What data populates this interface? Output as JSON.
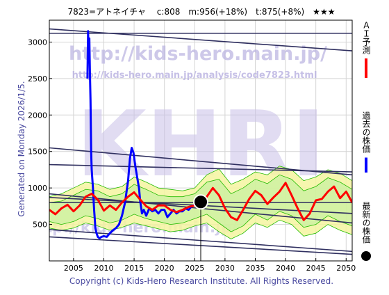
{
  "chart_data": {
    "type": "line",
    "title": "7823=アトネイチャ　 c:808　m:956(+18%)　t:875(+8%)　★★★",
    "xlim": [
      2001,
      2051
    ],
    "ylim": [
      0,
      3300
    ],
    "x_ticks": [
      2005,
      2010,
      2015,
      2020,
      2025,
      2030,
      2035,
      2040,
      2045,
      2050
    ],
    "y_ticks": [
      500,
      1000,
      1500,
      2000,
      2500,
      3000
    ],
    "grid": true,
    "left_label": "Generated on Monday 2026/1/5.",
    "footer": "Copyright (c) Kids-Hero Research Institute. All Rights Reserved.",
    "watermark": {
      "big": "KHRI",
      "url1": "http://kids-hero.main.jp/",
      "url2": "http://kids-hero.main.jp/analysis/code7823.html",
      "url3": "http://kids-hero.main.jp/"
    },
    "legend": [
      {
        "label": "ＡＩ予測",
        "color": "#ff0000",
        "marker": "line"
      },
      {
        "label": "過去の株価",
        "color": "#0000ff",
        "marker": "line"
      },
      {
        "label": "最新の株価",
        "color": "#000000",
        "marker": "dot"
      }
    ],
    "colors": {
      "ai": "#ff0000",
      "past": "#0000ff",
      "latest": "#000000",
      "trend": "#303060",
      "band_green": "#22bb00",
      "band_fill": "#f4f4a0"
    },
    "latest_price": {
      "x": 2026.0,
      "y": 808
    },
    "trend_lines": [
      {
        "x": [
          2001,
          2051
        ],
        "y": [
          3180,
          2880
        ]
      },
      {
        "x": [
          2001,
          2051
        ],
        "y": [
          3120,
          3120
        ]
      },
      {
        "x": [
          2001,
          2051
        ],
        "y": [
          1550,
          1180
        ]
      },
      {
        "x": [
          2001,
          2051
        ],
        "y": [
          1320,
          1220
        ]
      },
      {
        "x": [
          2001,
          2051
        ],
        "y": [
          920,
          520
        ]
      },
      {
        "x": [
          2001,
          2051
        ],
        "y": [
          870,
          650
        ]
      },
      {
        "x": [
          2001,
          2051
        ],
        "y": [
          800,
          800
        ]
      },
      {
        "x": [
          2001,
          2051
        ],
        "y": [
          430,
          130
        ]
      },
      {
        "x": [
          2001,
          2051
        ],
        "y": [
          330,
          90
        ]
      }
    ],
    "series": [
      {
        "name": "過去の株価",
        "x": [
          2007.3,
          2007.4,
          2007.45,
          2007.5,
          2007.6,
          2007.7,
          2007.8,
          2007.9,
          2008.0,
          2008.2,
          2008.4,
          2008.6,
          2008.8,
          2009.0,
          2009.3,
          2009.6,
          2010.0,
          2010.5,
          2011.0,
          2011.5,
          2012.0,
          2012.5,
          2013.0,
          2013.5,
          2014.0,
          2014.3,
          2014.6,
          2014.9,
          2015.2,
          2015.5,
          2015.8,
          2016.0,
          2016.3,
          2016.6,
          2017.0,
          2017.5,
          2018.0,
          2018.5,
          2019.0,
          2019.5,
          2020.0,
          2020.5,
          2021.0,
          2021.5,
          2022.0,
          2022.5,
          2023.0,
          2023.5,
          2024.0,
          2024.5,
          2025.0,
          2025.5
        ],
        "y": [
          2500,
          3150,
          3000,
          2900,
          3050,
          2600,
          2200,
          1500,
          1250,
          1000,
          700,
          450,
          380,
          330,
          310,
          330,
          340,
          330,
          380,
          420,
          450,
          500,
          620,
          800,
          1100,
          1400,
          1550,
          1480,
          1300,
          1150,
          1000,
          820,
          650,
          700,
          620,
          720,
          680,
          700,
          650,
          700,
          700,
          600,
          650,
          700,
          650,
          680,
          680,
          720,
          700,
          750,
          770,
          800
        ]
      },
      {
        "name": "ＡＩ予測",
        "x": [
          2001,
          2002,
          2003,
          2004,
          2005,
          2006,
          2007,
          2008,
          2009,
          2010,
          2011,
          2012,
          2013,
          2014,
          2015,
          2016,
          2017,
          2018,
          2019,
          2020,
          2021,
          2022,
          2023,
          2024,
          2025,
          2026,
          2027,
          2028,
          2029,
          2030,
          2031,
          2032,
          2033,
          2034,
          2035,
          2036,
          2037,
          2038,
          2039,
          2040,
          2041,
          2042,
          2043,
          2044,
          2045,
          2046,
          2047,
          2048,
          2049,
          2050,
          2051
        ],
        "y": [
          700,
          640,
          720,
          770,
          680,
          760,
          880,
          920,
          840,
          690,
          760,
          700,
          800,
          880,
          940,
          840,
          750,
          700,
          760,
          760,
          700,
          670,
          700,
          740,
          760,
          780,
          880,
          1000,
          900,
          720,
          600,
          560,
          700,
          850,
          960,
          900,
          780,
          870,
          950,
          1070,
          900,
          720,
          560,
          650,
          830,
          850,
          950,
          1020,
          860,
          950,
          800
        ]
      }
    ],
    "bands": [
      {
        "x": [
          2001,
          2003,
          2005,
          2007,
          2009,
          2011,
          2013,
          2015,
          2017,
          2019,
          2021,
          2023,
          2025,
          2027,
          2029,
          2031,
          2033,
          2035,
          2037,
          2039,
          2041,
          2043,
          2045,
          2047,
          2049,
          2051
        ],
        "upper": [
          880,
          920,
          1000,
          1080,
          1050,
          980,
          1020,
          1150,
          1080,
          1000,
          980,
          960,
          1000,
          1180,
          1260,
          1050,
          1120,
          1220,
          1180,
          1300,
          1250,
          1100,
          1150,
          1250,
          1200,
          1100
        ],
        "lower": [
          450,
          420,
          450,
          520,
          480,
          420,
          460,
          520,
          480,
          440,
          400,
          420,
          480,
          520,
          400,
          300,
          380,
          520,
          460,
          560,
          500,
          340,
          380,
          500,
          420,
          360
        ]
      },
      {
        "x": [
          2001,
          2003,
          2005,
          2007,
          2009,
          2011,
          2013,
          2015,
          2017,
          2019,
          2021,
          2023,
          2025,
          2027,
          2029,
          2031,
          2033,
          2035,
          2037,
          2039,
          2041,
          2043,
          2045,
          2047,
          2049,
          2051
        ],
        "upper": [
          800,
          820,
          900,
          980,
          960,
          880,
          920,
          1050,
          980,
          900,
          880,
          880,
          920,
          1080,
          1120,
          920,
          1000,
          1120,
          1060,
          1180,
          1120,
          960,
          1020,
          1140,
          1080,
          980
        ],
        "lower": [
          540,
          500,
          540,
          620,
          580,
          520,
          560,
          640,
          580,
          540,
          500,
          520,
          580,
          640,
          520,
          400,
          480,
          640,
          560,
          680,
          620,
          460,
          500,
          620,
          540,
          480
        ]
      }
    ]
  }
}
